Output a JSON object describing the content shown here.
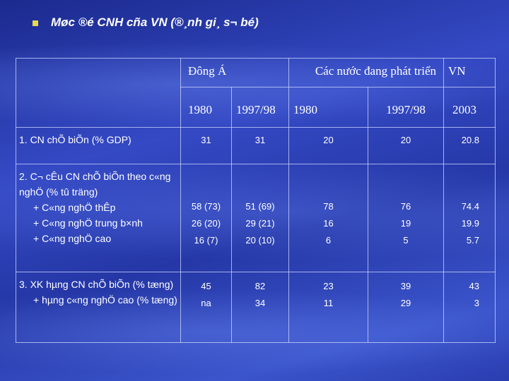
{
  "title": "Møc ®é CNH cña VN (®¸nh gi¸ s¬ bé)",
  "table": {
    "groups": [
      "Đông Á",
      "Các nước đang phát triển",
      "VN"
    ],
    "years": [
      "1980",
      "1997/98",
      "1980",
      "1997/98",
      "2003"
    ],
    "rows": [
      {
        "label": [
          "1. CN chÕ biÕn (% GDP)"
        ],
        "cells": [
          [
            "31"
          ],
          [
            "31"
          ],
          [
            "20"
          ],
          [
            "20"
          ],
          [
            "20.8"
          ]
        ]
      },
      {
        "label": [
          "2. C¬ cÊu CN chÕ biÕn theo c«ng nghÖ (% tû träng)",
          "+ C«ng nghÖ thÊp",
          "+ C«ng nghÖ trung b×nh",
          "+ C«ng nghÖ cao"
        ],
        "cells": [
          [
            "58 (73)",
            "26 (20)",
            "16 (7)"
          ],
          [
            "51 (69)",
            "29 (21)",
            "20 (10)"
          ],
          [
            "78",
            "16",
            "6"
          ],
          [
            "76",
            "19",
            "5"
          ],
          [
            "74.4",
            "19.9",
            "5.7"
          ]
        ]
      },
      {
        "label": [
          "3. XK hµng CN chÕ biÕn (% tæng)",
          "+ hµng c«ng nghÖ cao (% tæng)"
        ],
        "cells": [
          [
            "45",
            "na"
          ],
          [
            "82",
            "34"
          ],
          [
            "23",
            "11"
          ],
          [
            "39",
            "29"
          ],
          [
            "43",
            "3"
          ]
        ]
      }
    ]
  }
}
